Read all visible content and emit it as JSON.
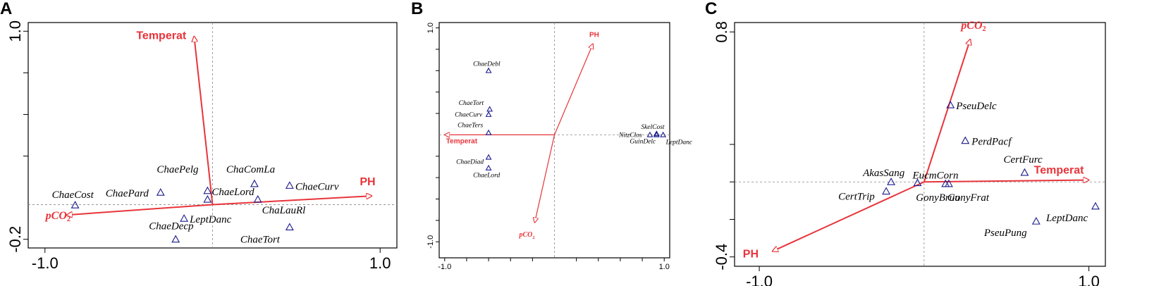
{
  "colors": {
    "arrow": "#e8343a",
    "point": "#1a1a8c",
    "frame": "#000000",
    "guide": "#888888"
  },
  "chart_data": [
    {
      "type": "scatter",
      "panel_letter": "A",
      "xlim": [
        -1.1,
        1.1
      ],
      "ylim": [
        -0.25,
        1.05
      ],
      "x_ticks": [
        -1.0,
        1.0
      ],
      "y_ticks": [
        1.0,
        -0.2
      ],
      "x_tick_labels": [
        "-1.0",
        "1.0"
      ],
      "y_tick_labels": [
        "1.0",
        "-0.2"
      ],
      "extra_y_ticks": [
        0.28,
        0.52,
        0.76
      ],
      "reference_lines": {
        "x": 0,
        "y": 0
      },
      "arrows": [
        {
          "label": "Temperat",
          "x": -0.11,
          "y": 0.97
        },
        {
          "label": "PH",
          "x": 0.95,
          "y": 0.05
        },
        {
          "label": "pCO",
          "subscript": "2",
          "x": -0.87,
          "y": -0.06
        }
      ],
      "species": [
        {
          "label": "ChaeCost",
          "x": -0.82,
          "y": -0.003
        },
        {
          "label": "ChaePard",
          "x": -0.31,
          "y": 0.07
        },
        {
          "label": "ChaePelg",
          "x": -0.03,
          "y": 0.08
        },
        {
          "label": "ChaeLord",
          "x": -0.03,
          "y": 0.03
        },
        {
          "label": "ChaComLa",
          "x": 0.25,
          "y": 0.12
        },
        {
          "label": "ChaeCurv",
          "x": 0.46,
          "y": 0.11
        },
        {
          "label": "ChaLauRl",
          "x": 0.27,
          "y": 0.03
        },
        {
          "label": "LeptDanc",
          "x": -0.17,
          "y": -0.08
        },
        {
          "label": "ChaeDecp",
          "x": -0.22,
          "y": -0.2
        },
        {
          "label": "ChaeTort",
          "x": 0.46,
          "y": -0.13
        }
      ]
    },
    {
      "type": "scatter",
      "panel_letter": "B",
      "xlim": [
        -1.05,
        1.05
      ],
      "ylim": [
        -1.15,
        1.05
      ],
      "x_ticks": [
        -1.0,
        1.0
      ],
      "y_ticks": [
        1.0,
        -1.0
      ],
      "x_tick_labels": [
        "-1.0",
        "1.0"
      ],
      "y_tick_labels": [
        "1.0",
        "-1.0"
      ],
      "extra_x_ticks": [
        -0.8,
        -0.6,
        -0.4,
        -0.2,
        0.2,
        0.4,
        0.6,
        0.8
      ],
      "extra_y_ticks": [
        -0.8,
        -0.6,
        -0.4,
        -0.2,
        0.2,
        0.4,
        0.6,
        0.8
      ],
      "reference_lines": {
        "x": 0,
        "y": 0
      },
      "arrows": [
        {
          "label": "PH",
          "x": 0.35,
          "y": 0.85
        },
        {
          "label": "Temperat",
          "x": -1.0,
          "y": 0.0
        },
        {
          "label": "pCO",
          "subscript": "2",
          "x": -0.18,
          "y": -0.82
        }
      ],
      "species": [
        {
          "label": "ChaeDebl",
          "x": -0.6,
          "y": 0.6
        },
        {
          "label": "ChaeTort",
          "x": -0.59,
          "y": 0.24
        },
        {
          "label": "ChaeCurv",
          "x": -0.6,
          "y": 0.19
        },
        {
          "label": "ChaeTers",
          "x": -0.6,
          "y": 0.02
        },
        {
          "label": "ChaeDiad",
          "x": -0.6,
          "y": -0.21
        },
        {
          "label": "ChaeLord",
          "x": -0.6,
          "y": -0.31
        },
        {
          "label": "SkelCost",
          "x": 0.93,
          "y": 0.01
        },
        {
          "label": "NitzClos",
          "x": 0.87,
          "y": 0.0
        },
        {
          "label": "GuinDelc",
          "x": 0.93,
          "y": 0.0
        },
        {
          "label": "LeptDanc",
          "x": 0.99,
          "y": 0.0
        }
      ]
    },
    {
      "type": "scatter",
      "panel_letter": "C",
      "xlim": [
        -1.15,
        1.1
      ],
      "ylim": [
        -0.45,
        0.85
      ],
      "x_ticks": [
        -1.0,
        1.0
      ],
      "y_ticks": [
        0.8,
        -0.4
      ],
      "x_tick_labels": [
        "-1.0",
        "1.0"
      ],
      "y_tick_labels": [
        "0.8",
        "-0.4"
      ],
      "extra_y_ticks": [
        0.2,
        0.0,
        -0.2
      ],
      "reference_lines": {
        "x": 0,
        "y": 0
      },
      "arrows": [
        {
          "label": "pCO",
          "subscript": "2",
          "x": 0.28,
          "y": 0.76
        },
        {
          "label": "Temperat",
          "x": 1.0,
          "y": 0.01
        },
        {
          "label": "PH",
          "x": -0.92,
          "y": -0.37
        }
      ],
      "species": [
        {
          "label": "PseuDelc",
          "x": 0.16,
          "y": 0.41
        },
        {
          "label": "PerdPacf",
          "x": 0.25,
          "y": 0.22
        },
        {
          "label": "CertFurc",
          "x": 0.61,
          "y": 0.05
        },
        {
          "label": "AkasSang",
          "x": -0.2,
          "y": 0.0
        },
        {
          "label": "EucmCorn",
          "x": -0.04,
          "y": -0.005
        },
        {
          "label": "CertTrip",
          "x": -0.23,
          "y": -0.05
        },
        {
          "label": "GonyBruu",
          "x": 0.13,
          "y": -0.01
        },
        {
          "label": "GonyFrat",
          "x": 0.15,
          "y": -0.01
        },
        {
          "label": "PseuPung",
          "x": 0.68,
          "y": -0.21
        },
        {
          "label": "LeptDanc",
          "x": 1.04,
          "y": -0.13
        }
      ]
    }
  ]
}
